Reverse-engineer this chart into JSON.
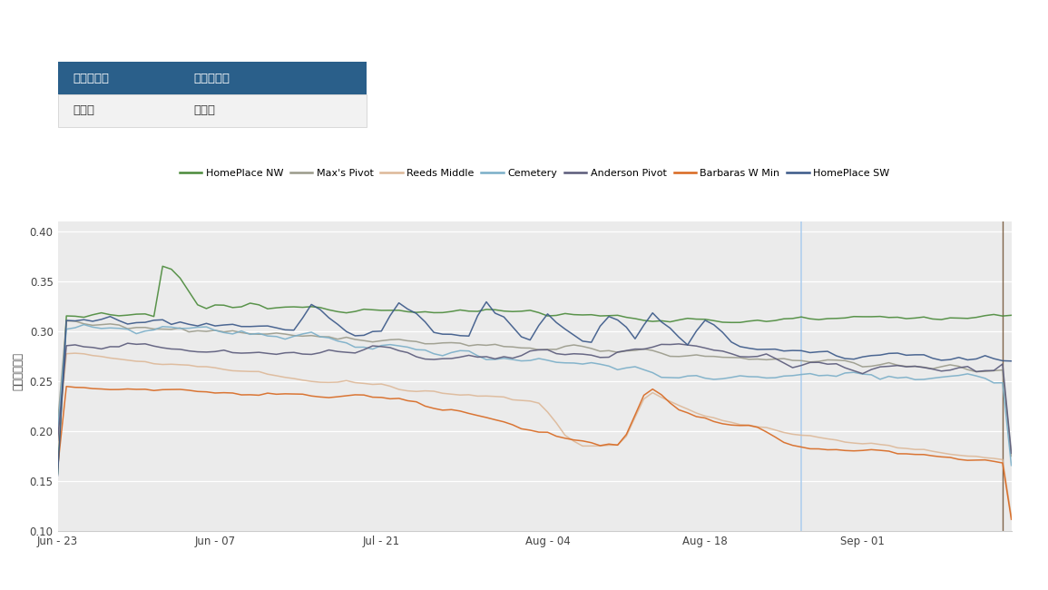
{
  "ylabel": "水分量（ヨ）",
  "ylim": [
    0.1,
    0.41
  ],
  "yticks": [
    0.1,
    0.15,
    0.2,
    0.25,
    0.3,
    0.35,
    0.4
  ],
  "x_labels": [
    "Jun - 23",
    "Jun - 07",
    "Jul - 21",
    "Aug - 04",
    "Aug - 18",
    "Sep - 01"
  ],
  "legend_entries": [
    "HomePlace NW",
    "Max's Pivot",
    "Reeds Middle",
    "Cemetery",
    "Anderson Pivot",
    "Barbaras W Min",
    "HomePlace SW"
  ],
  "line_colors": [
    "#4a8a3a",
    "#9a9a8a",
    "#ddb898",
    "#7aaec8",
    "#5a5a7a",
    "#d86820",
    "#3a5888"
  ],
  "vline1_color": "#aaccee",
  "vline2_color": "#886644",
  "table_header_bg": "#2a5f8a",
  "table_header_text": "#ffffff",
  "table_col1": "土壌の種類",
  "table_col2": "作物の種類",
  "table_val1": "埴壌土",
  "table_val2": "外来種"
}
